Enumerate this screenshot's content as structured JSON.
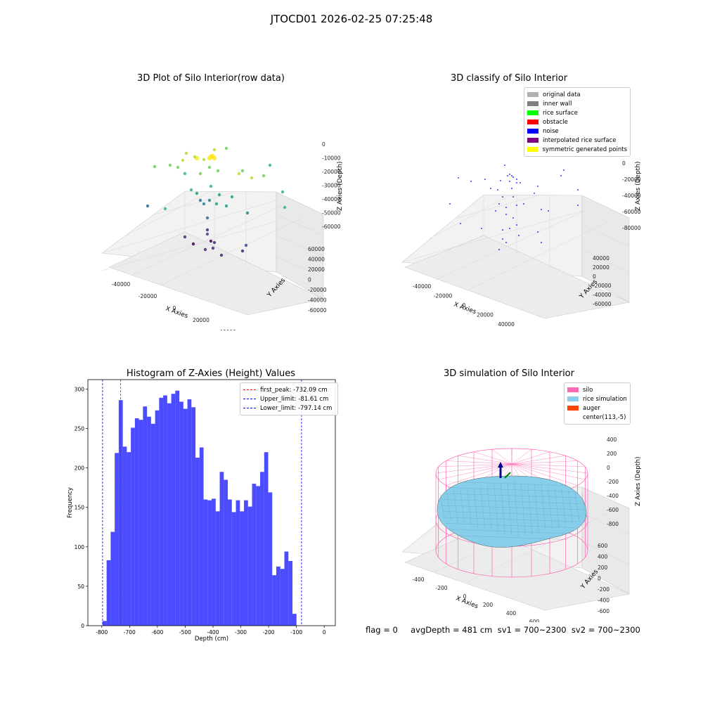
{
  "suptitle": "JTOCD01 2026-02-25 07:25:48",
  "footer": "flag = 0     avgDepth = 481 cm  sv1 = 700~2300  sv2 = 700~2300",
  "panels": {
    "p1": {
      "title": "3D Plot of Silo Interior(row data)",
      "xlabel": "X Axies",
      "ylabel": "Y Axies",
      "zlabel": "Z Axies (Depth)",
      "xticks": [
        "-40000",
        "-20000",
        "0",
        "20000",
        "40000"
      ],
      "yticks": [
        "60000",
        "40000",
        "20000",
        "0",
        "-20000",
        "-40000",
        "-60000"
      ],
      "zticks": [
        "0",
        "-10000",
        "-20000",
        "-30000",
        "-40000",
        "-50000",
        "-60000"
      ]
    },
    "p2": {
      "title": "3D classify of Silo Interior",
      "xlabel": "X Axies",
      "ylabel": "Y Axies",
      "zlabel": "Z Axies (Depth)",
      "xticks": [
        "-40000",
        "-20000",
        "0",
        "20000",
        "40000",
        "60000"
      ],
      "yticks": [
        "40000",
        "20000",
        "0",
        "-20000",
        "-40000",
        "-60000"
      ],
      "zticks": [
        "0",
        "-20000",
        "-40000",
        "-60000",
        "-80000"
      ],
      "legend": [
        {
          "label": "original data",
          "color": "#b0b0b0"
        },
        {
          "label": "inner wall",
          "color": "#808080"
        },
        {
          "label": "rice surface",
          "color": "#00ff00"
        },
        {
          "label": "obstacle",
          "color": "#ff0000"
        },
        {
          "label": "noise",
          "color": "#0000ff"
        },
        {
          "label": "interpolated rice surface",
          "color": "#800080"
        },
        {
          "label": "symmetric generated points",
          "color": "#ffff00"
        }
      ]
    },
    "p4": {
      "title": "3D simulation of Silo Interior",
      "xlabel": "X Axies",
      "ylabel": "Y Axies",
      "zlabel": "Z Axies (Depth)",
      "xticks": [
        "-400",
        "-200",
        "0",
        "200",
        "400",
        "600"
      ],
      "yticks": [
        "600",
        "400",
        "200",
        "0",
        "-200",
        "-400",
        "-600"
      ],
      "zticks": [
        "400",
        "200",
        "0",
        "-200",
        "-400",
        "-600",
        "-800"
      ],
      "legend": [
        {
          "label": "silo",
          "color": "#ff69b4"
        },
        {
          "label": "rice simulation",
          "color": "#87ceeb"
        },
        {
          "label": "auger",
          "color": "#ff4500"
        },
        {
          "label": "center(113,-5)",
          "color": ""
        }
      ]
    }
  },
  "chart_data": {
    "type": "bar",
    "title": "Histogram of Z-Axies (Height) Values",
    "xlabel": "Depth (cm)",
    "ylabel": "Frequency",
    "xlim": [
      -850,
      40
    ],
    "ylim": [
      0,
      312
    ],
    "xticks": [
      -800,
      -700,
      -600,
      -500,
      -400,
      -300,
      -200,
      -100,
      0
    ],
    "yticks": [
      0,
      50,
      100,
      150,
      200,
      250,
      300
    ],
    "bar_color": "#0000ff",
    "bin_edges_start": -797.14,
    "bin_width": 14.53,
    "values": [
      6,
      83,
      119,
      219,
      286,
      227,
      220,
      251,
      263,
      261,
      278,
      265,
      256,
      273,
      289,
      292,
      282,
      294,
      298,
      284,
      275,
      287,
      277,
      213,
      226,
      160,
      159,
      161,
      145,
      195,
      185,
      160,
      144,
      159,
      145,
      159,
      151,
      180,
      177,
      195,
      220,
      169,
      64,
      75,
      72,
      94,
      82,
      15
    ],
    "vlines": [
      {
        "label": "first_peak: -732.09 cm",
        "x": -732.09,
        "color": "#ff0000"
      },
      {
        "label": "Upper_limit: -81.61 cm",
        "x": -81.61,
        "color": "#0000ff"
      },
      {
        "label": "Lower_limit: -797.14 cm",
        "x": -797.14,
        "color": "#0000ff"
      }
    ],
    "legend_loc": "upper right"
  }
}
